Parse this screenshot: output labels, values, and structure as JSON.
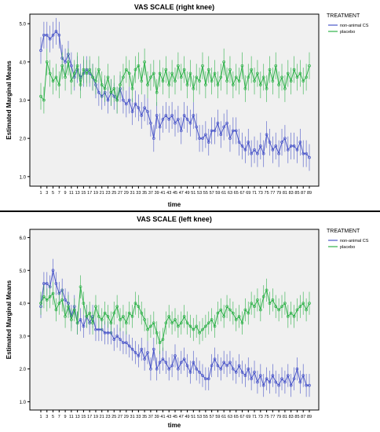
{
  "colors": {
    "plot_bg": "#f0f0f0",
    "non_animal": "#4a56c9",
    "placebo": "#2fb24a",
    "frame": "#000000"
  },
  "chart_data": [
    {
      "type": "line",
      "title": "VAS SCALE (right knee)",
      "xlabel": "time",
      "ylabel": "Estimated Marginal Means",
      "xlim": [
        1,
        89
      ],
      "ylim": [
        0.75,
        5.25
      ],
      "yticks": [
        "1.0",
        "2.0",
        "3.0",
        "4.0",
        "5.0"
      ],
      "xticks": [
        "1",
        "3",
        "5",
        "7",
        "9",
        "11",
        "13",
        "15",
        "17",
        "19",
        "21",
        "23",
        "25",
        "27",
        "29",
        "31",
        "33",
        "35",
        "37",
        "39",
        "41",
        "43",
        "45",
        "47",
        "49",
        "51",
        "53",
        "55",
        "57",
        "59",
        "61",
        "63",
        "65",
        "67",
        "69",
        "71",
        "73",
        "75",
        "77",
        "79",
        "81",
        "83",
        "85",
        "87",
        "89"
      ],
      "legend": {
        "title": "TREATMENT",
        "position": "right",
        "entries": [
          "non-animal CS",
          "placebo"
        ]
      },
      "error_bars": "±0.35",
      "series": [
        {
          "name": "non-animal CS",
          "x_start": 1,
          "values": [
            4.3,
            4.7,
            4.7,
            4.6,
            4.7,
            4.8,
            4.7,
            4.1,
            4.0,
            4.2,
            3.9,
            3.6,
            3.8,
            3.6,
            3.7,
            3.8,
            3.7,
            3.6,
            3.4,
            3.2,
            3.1,
            3.2,
            3.0,
            3.2,
            3.1,
            3.0,
            3.3,
            3.0,
            2.9,
            3.0,
            2.7,
            2.9,
            2.8,
            2.6,
            2.8,
            2.7,
            2.4,
            2.0,
            2.6,
            2.3,
            2.5,
            2.6,
            2.5,
            2.6,
            2.4,
            2.5,
            2.2,
            2.6,
            2.5,
            2.4,
            2.6,
            2.3,
            2.0,
            2.0,
            2.1,
            1.9,
            2.2,
            2.2,
            2.4,
            2.1,
            2.3,
            2.4,
            2.0,
            2.2,
            2.2,
            1.9,
            1.8,
            1.7,
            1.9,
            1.6,
            1.7,
            1.6,
            1.8,
            1.6,
            2.1,
            1.9,
            1.7,
            1.8,
            1.6,
            1.9,
            2.0,
            1.7,
            1.8,
            1.8,
            1.7,
            1.9,
            1.6,
            1.6,
            1.5
          ]
        },
        {
          "name": "placebo",
          "x_start": 1,
          "values": [
            3.1,
            3.0,
            4.0,
            3.7,
            3.5,
            3.6,
            3.4,
            3.9,
            3.6,
            4.0,
            3.5,
            3.7,
            3.9,
            3.4,
            3.8,
            3.7,
            3.8,
            3.6,
            3.5,
            3.8,
            3.4,
            3.3,
            3.6,
            3.2,
            3.3,
            3.0,
            3.4,
            3.6,
            3.8,
            3.7,
            3.3,
            3.8,
            3.9,
            3.5,
            4.0,
            3.4,
            3.6,
            3.7,
            3.2,
            3.7,
            3.5,
            3.8,
            3.4,
            3.7,
            3.5,
            3.9,
            3.6,
            3.8,
            3.4,
            3.7,
            3.3,
            3.6,
            3.5,
            3.9,
            3.4,
            3.8,
            3.5,
            3.7,
            3.4,
            3.6,
            4.0,
            3.5,
            3.8,
            3.4,
            3.6,
            3.5,
            3.9,
            3.3,
            3.6,
            3.8,
            3.5,
            3.7,
            3.4,
            3.6,
            3.3,
            3.8,
            3.5,
            3.9,
            3.4,
            3.6,
            3.3,
            3.7,
            3.5,
            3.8,
            3.6,
            3.7,
            3.5,
            3.6,
            3.9
          ]
        }
      ]
    },
    {
      "type": "line",
      "title": "VAS SCALE (left knee)",
      "xlabel": "time",
      "ylabel": "Estimated Marginal Means",
      "xlim": [
        1,
        89
      ],
      "ylim": [
        0.75,
        6.25
      ],
      "yticks": [
        "1.0",
        "2.0",
        "3.0",
        "4.0",
        "5.0",
        "6.0"
      ],
      "xticks": [
        "1",
        "3",
        "5",
        "7",
        "9",
        "11",
        "13",
        "15",
        "17",
        "19",
        "21",
        "23",
        "25",
        "27",
        "29",
        "31",
        "33",
        "35",
        "37",
        "39",
        "41",
        "43",
        "45",
        "47",
        "49",
        "51",
        "53",
        "55",
        "57",
        "59",
        "61",
        "63",
        "65",
        "67",
        "69",
        "71",
        "73",
        "75",
        "77",
        "79",
        "81",
        "83",
        "85",
        "87",
        "89"
      ],
      "legend": {
        "title": "TREATMENT",
        "position": "right",
        "entries": [
          "non-animal CS",
          "placebo"
        ]
      },
      "error_bars": "±0.35",
      "series": [
        {
          "name": "non-animal CS",
          "x_start": 1,
          "values": [
            3.9,
            4.6,
            4.6,
            4.5,
            5.0,
            4.6,
            4.3,
            4.4,
            4.1,
            4.0,
            3.6,
            3.9,
            3.4,
            3.5,
            3.3,
            3.6,
            3.4,
            3.6,
            3.2,
            3.2,
            3.2,
            3.1,
            3.1,
            3.1,
            2.9,
            3.0,
            2.9,
            2.8,
            2.8,
            2.7,
            2.6,
            2.5,
            2.4,
            2.6,
            2.3,
            2.5,
            2.0,
            2.6,
            2.0,
            2.2,
            2.3,
            2.2,
            2.0,
            2.1,
            2.4,
            2.0,
            2.2,
            2.3,
            2.1,
            1.9,
            2.2,
            2.0,
            1.9,
            1.8,
            1.7,
            1.7,
            2.1,
            2.3,
            2.1,
            2.0,
            2.2,
            2.1,
            2.2,
            2.0,
            1.9,
            2.1,
            1.9,
            1.8,
            2.0,
            1.7,
            1.9,
            1.6,
            1.8,
            1.5,
            1.7,
            1.6,
            1.8,
            1.6,
            1.5,
            1.7,
            1.6,
            1.8,
            1.5,
            1.7,
            2.0,
            1.6,
            1.8,
            1.5,
            1.5
          ]
        },
        {
          "name": "placebo",
          "x_start": 1,
          "values": [
            4.0,
            4.2,
            4.1,
            4.2,
            4.3,
            3.8,
            4.0,
            4.1,
            3.6,
            3.9,
            3.5,
            3.8,
            3.4,
            4.5,
            4.0,
            3.6,
            3.7,
            3.4,
            3.9,
            3.6,
            3.5,
            3.7,
            3.6,
            3.4,
            3.7,
            3.9,
            3.5,
            3.6,
            3.4,
            3.7,
            3.6,
            4.0,
            3.9,
            3.7,
            3.5,
            3.2,
            3.3,
            3.4,
            3.1,
            2.8,
            2.9,
            3.4,
            3.6,
            3.4,
            3.5,
            3.3,
            3.4,
            3.6,
            3.4,
            3.3,
            3.2,
            3.3,
            3.1,
            3.2,
            3.3,
            3.4,
            3.5,
            3.3,
            3.7,
            3.8,
            3.6,
            3.9,
            3.8,
            3.7,
            3.5,
            3.6,
            3.4,
            3.8,
            3.7,
            4.0,
            3.9,
            4.1,
            3.8,
            4.2,
            4.4,
            4.0,
            4.1,
            3.9,
            3.8,
            3.9,
            4.0,
            3.6,
            3.7,
            3.6,
            3.8,
            3.9,
            4.0,
            3.8,
            4.0
          ]
        }
      ]
    }
  ]
}
